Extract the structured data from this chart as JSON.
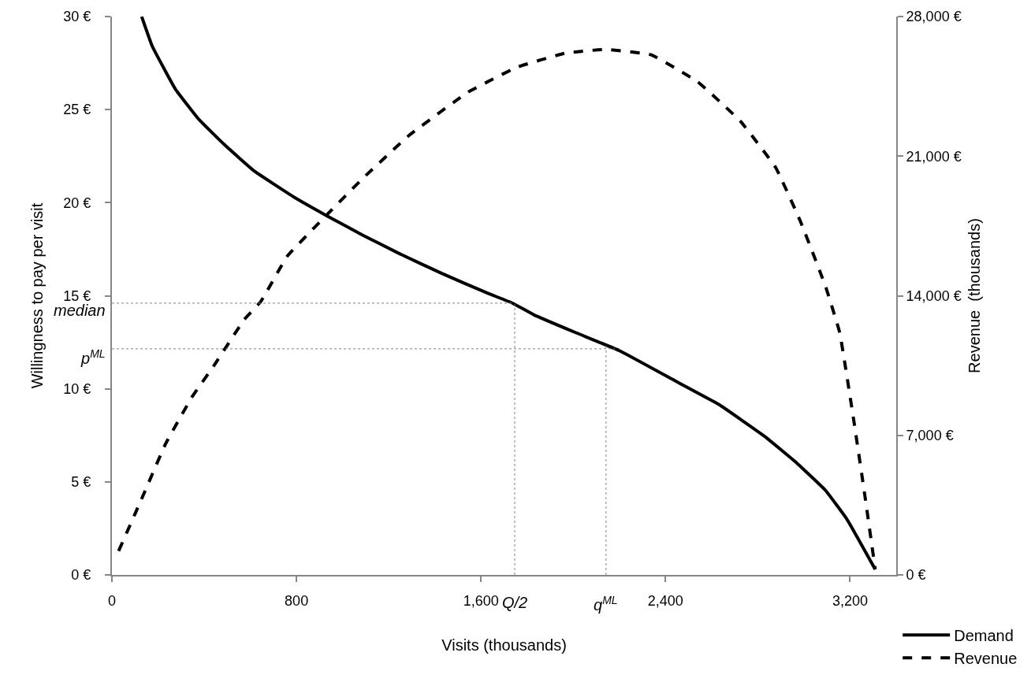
{
  "chart_data": {
    "type": "line",
    "xlabel": "Visits (thousands)",
    "ylabel": "Willingness to pay per visit",
    "y2label": "Revenue  (thousands)",
    "series": [
      {
        "name": "Demand",
        "color": "#000000",
        "line_style": "solid",
        "x": [
          129,
          175,
          275,
          375,
          489,
          617,
          789,
          931,
          1088,
          1245,
          1430,
          1630,
          1737,
          1830,
          2014,
          2200,
          2446,
          2631,
          2831,
          2970,
          3093,
          3186,
          3309
        ],
        "values": [
          30,
          28.4,
          26.1,
          24.5,
          23.1,
          21.7,
          20.3,
          19.3,
          18.25,
          17.27,
          16.2,
          15.13,
          14.6,
          13.97,
          13.0,
          12.05,
          10.4,
          9.16,
          7.43,
          6.0,
          4.55,
          3.0,
          0.3
        ]
      },
      {
        "name": "Revenue",
        "color": "#000000",
        "line_style": "dashed",
        "axis": "y2",
        "x": [
          29,
          132,
          232,
          346,
          446,
          574,
          646,
          760,
          931,
          1088,
          1288,
          1544,
          1756,
          1968,
          2138,
          2338,
          2539,
          2724,
          2878,
          2985,
          3093,
          3155,
          3217,
          3263,
          3309
        ],
        "values": [
          1200,
          3900,
          6560,
          8900,
          10560,
          12810,
          13720,
          15980,
          18050,
          19890,
          22040,
          24210,
          25460,
          26170,
          26350,
          26080,
          24730,
          22760,
          20420,
          17720,
          14490,
          12150,
          7670,
          4070,
          290
        ]
      }
    ],
    "xlim": [
      0,
      3400
    ],
    "xticks": [
      0,
      {
        "value": 800,
        "label": "800"
      },
      {
        "value": 1600,
        "label": "1,600"
      },
      {
        "value": 2400,
        "label": "2,400"
      },
      {
        "value": 3200,
        "label": "3,200"
      }
    ],
    "ylim": [
      0,
      30
    ],
    "yticks": [
      {
        "value": 0,
        "label": "0 €"
      },
      {
        "value": 5,
        "label": "5 €"
      },
      {
        "value": 10,
        "label": "10 €"
      },
      {
        "value": 15,
        "label": "15 €"
      },
      {
        "value": 20,
        "label": "20 €"
      },
      {
        "value": 25,
        "label": "25 €"
      },
      {
        "value": 30,
        "label": "30 €"
      }
    ],
    "y2lim": [
      0,
      28000
    ],
    "y2ticks": [
      {
        "value": 0,
        "label": "0 €"
      },
      {
        "value": 7000,
        "label": "7,000 €"
      },
      {
        "value": 14000,
        "label": "14,000 €"
      },
      {
        "value": 21000,
        "label": "21,000 €"
      },
      {
        "value": 28000,
        "label": "28,000 €"
      }
    ],
    "ref_lines": [
      {
        "axis": "y",
        "value": 14.6,
        "label": "median",
        "color": "#808080",
        "line_style": "dotted"
      },
      {
        "axis": "y",
        "value": 12.15,
        "label": "p$^{ML}$",
        "color": "#808080",
        "line_style": "dotted"
      },
      {
        "axis": "x",
        "value": 1746,
        "label": "Q/2",
        "color": "#808080",
        "line_style": "dotted"
      },
      {
        "axis": "x",
        "value": 2142,
        "label": "q$^{ML}$",
        "color": "#808080",
        "line_style": "dotted"
      }
    ],
    "legend": "bottom right",
    "marker": "none"
  }
}
